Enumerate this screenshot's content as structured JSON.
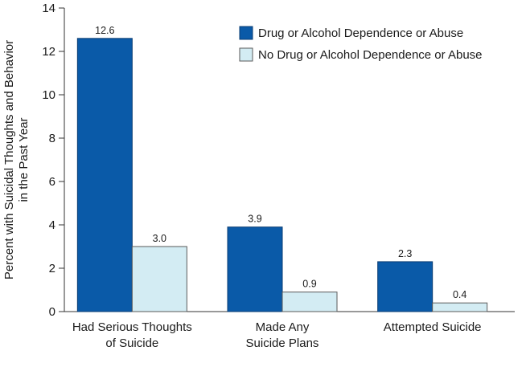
{
  "chart_data": {
    "type": "bar",
    "title": "",
    "xlabel": "",
    "ylabel_lines": [
      "Percent with Suicidal Thoughts and Behavior",
      "in the Past Year"
    ],
    "ylim": [
      0,
      14
    ],
    "yticks": [
      0,
      2,
      4,
      6,
      8,
      10,
      12,
      14
    ],
    "grid": false,
    "legend_position": "top-right",
    "categories": [
      [
        "Had Serious Thoughts",
        "of Suicide"
      ],
      [
        "Made Any",
        "Suicide Plans"
      ],
      [
        "Attempted Suicide"
      ]
    ],
    "series": [
      {
        "name": "Drug or Alcohol Dependence or Abuse",
        "color": "#0a5aa8",
        "values": [
          12.6,
          3.9,
          2.3
        ],
        "labels": [
          "12.6",
          "3.9",
          "2.3"
        ]
      },
      {
        "name": "No Drug or Alcohol Dependence or Abuse",
        "color": "#d3ecf3",
        "values": [
          3.0,
          0.9,
          0.4
        ],
        "labels": [
          "3.0",
          "0.9",
          "0.4"
        ]
      }
    ]
  }
}
